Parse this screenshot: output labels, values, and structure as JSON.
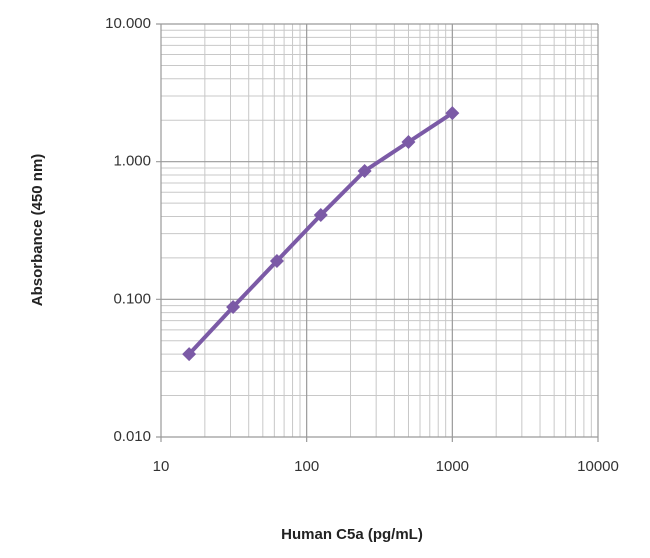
{
  "chart_data": {
    "type": "line",
    "x_label": "Human C5a (pg/mL)",
    "y_label": "Absorbance (450 nm)",
    "x_log": true,
    "y_log": true,
    "grid": true,
    "xlim": [
      10,
      10000
    ],
    "ylim": [
      0.01,
      10
    ],
    "xticks": [
      10,
      100,
      1000,
      10000
    ],
    "yticks": [
      {
        "value": 0.01,
        "label": "0.010"
      },
      {
        "value": 0.1,
        "label": "0.100"
      },
      {
        "value": 1,
        "label": "1.000"
      },
      {
        "value": 10,
        "label": "10.000"
      }
    ],
    "xminorticks": [
      20,
      30,
      40,
      50,
      60,
      70,
      80,
      90,
      200,
      300,
      400,
      500,
      600,
      700,
      800,
      900,
      2000,
      3000,
      4000,
      5000,
      6000,
      7000,
      8000,
      9000
    ],
    "yminorticks": [
      0.02,
      0.03,
      0.04,
      0.05,
      0.06,
      0.07,
      0.08,
      0.09,
      0.2,
      0.3,
      0.4,
      0.5,
      0.6,
      0.7,
      0.8,
      0.9,
      2,
      3,
      4,
      5,
      6,
      7,
      8,
      9
    ],
    "x": [
      15.6,
      31.25,
      62.5,
      125,
      250,
      500,
      1000
    ],
    "series": [
      {
        "color": "#7b5aa6",
        "values": [
          0.04,
          0.088,
          0.19,
          0.41,
          0.855,
          1.39,
          2.25
        ]
      }
    ]
  }
}
